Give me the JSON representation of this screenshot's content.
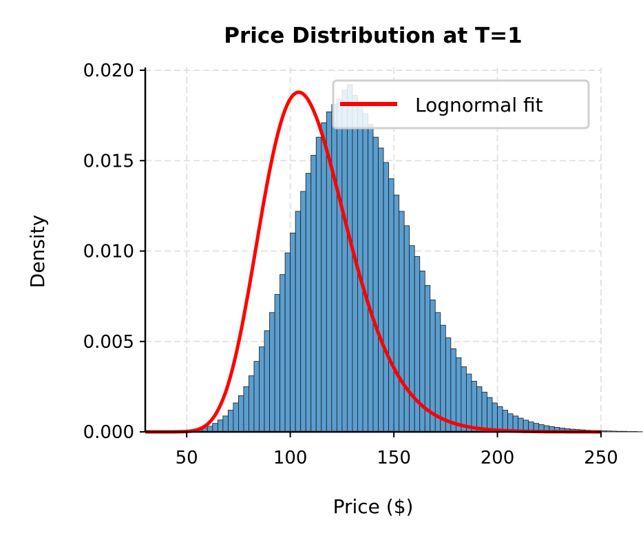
{
  "chart_data": {
    "type": "bar",
    "title": "Price Distribution at T=1",
    "xlabel": "Price ($)",
    "ylabel": "Density",
    "xlim": [
      30,
      250
    ],
    "ylim": [
      0,
      0.02
    ],
    "xticks": [
      "50",
      "100",
      "150",
      "200",
      "250"
    ],
    "yticks": [
      "0.000",
      "0.005",
      "0.010",
      "0.015",
      "0.020"
    ],
    "grid": true,
    "legend": {
      "placement": "top-right",
      "entries": [
        "Lognormal fit"
      ]
    },
    "colors": {
      "bars": "#5a9ecf",
      "edge": "#1a1a1a",
      "fit": "#ff0000"
    },
    "histogram": {
      "bin_start": 45,
      "bin_width": 2.5,
      "densities": [
        1e-05,
        2e-05,
        4e-05,
        7e-05,
        0.00013,
        0.00022,
        0.00031,
        0.00047,
        0.00066,
        0.00088,
        0.0012,
        0.0016,
        0.002,
        0.0025,
        0.0031,
        0.0039,
        0.0047,
        0.0056,
        0.0066,
        0.0076,
        0.0087,
        0.0099,
        0.011,
        0.0122,
        0.0133,
        0.0143,
        0.0153,
        0.0163,
        0.0171,
        0.0177,
        0.0181,
        0.0184,
        0.0189,
        0.0192,
        0.0186,
        0.0182,
        0.0176,
        0.017,
        0.0163,
        0.0157,
        0.0149,
        0.014,
        0.0131,
        0.0122,
        0.0114,
        0.0103,
        0.0097,
        0.0089,
        0.0081,
        0.0073,
        0.0066,
        0.0059,
        0.0052,
        0.0046,
        0.0041,
        0.0036,
        0.0032,
        0.0028,
        0.0025,
        0.0022,
        0.0019,
        0.0016,
        0.0014,
        0.0012,
        0.001,
        0.00088,
        0.00076,
        0.00065,
        0.00055,
        0.00047,
        0.0004,
        0.00034,
        0.00029,
        0.00025,
        0.00021,
        0.00018,
        0.00015,
        0.00013,
        0.00011,
        9e-05,
        8e-05,
        7e-05,
        6e-05,
        5e-05,
        4e-05,
        3e-05,
        3e-05,
        2e-05,
        2e-05,
        1e-05
      ]
    },
    "fit": {
      "distribution": "lognormal",
      "mu": 4.6852,
      "sigma": 0.2
    }
  }
}
